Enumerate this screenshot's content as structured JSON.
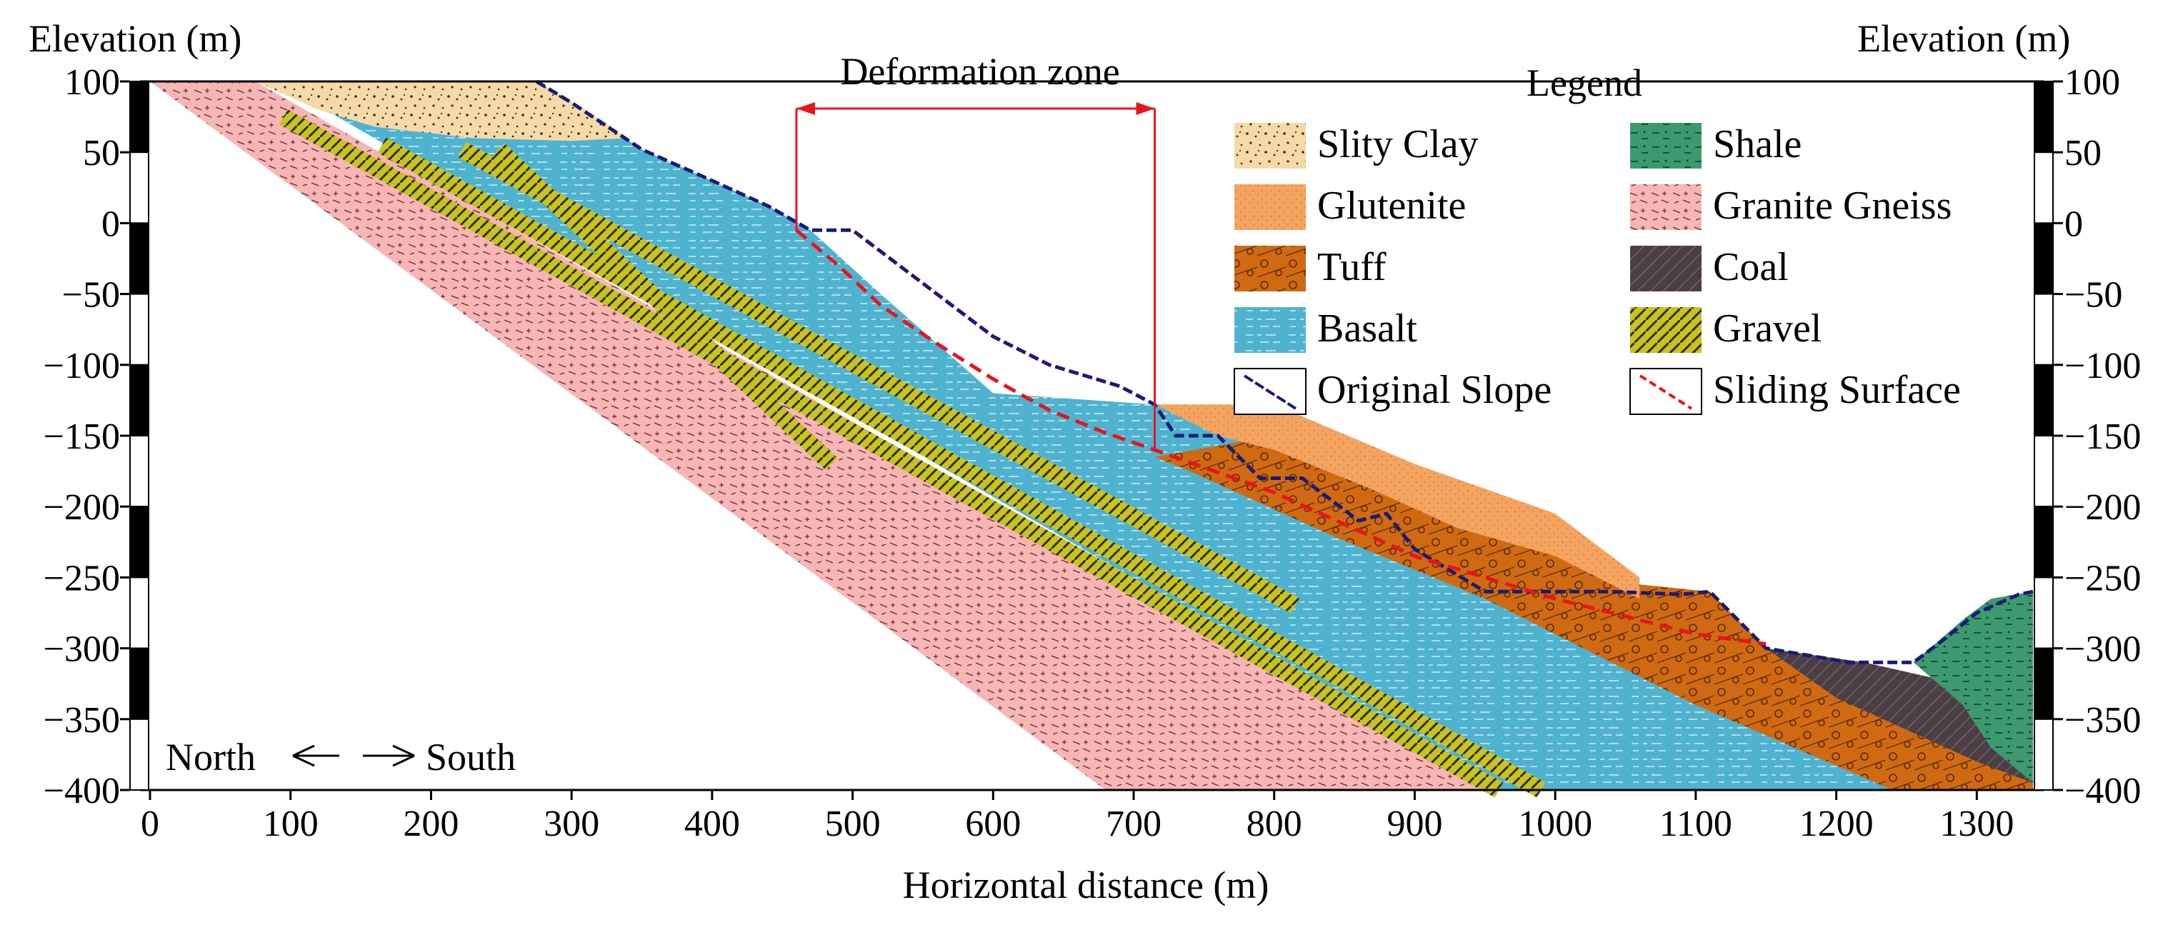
{
  "chart_data": {
    "type": "geological-cross-section",
    "title": "",
    "xlabel": "Horizontal distance (m)",
    "ylabel_left": "Elevation (m)",
    "ylabel_right": "Elevation (m)",
    "xlim": [
      0,
      1340
    ],
    "ylim": [
      -400,
      100
    ],
    "x_ticks": [
      0,
      100,
      200,
      300,
      400,
      500,
      600,
      700,
      800,
      900,
      1000,
      1100,
      1200,
      1300
    ],
    "y_ticks": [
      100,
      50,
      0,
      -50,
      -100,
      -150,
      -200,
      -250,
      -300,
      -350,
      -400
    ],
    "y_tick_labels_left": [
      "100",
      "50",
      "0",
      "−50",
      "−100",
      "−150",
      "−200",
      "−250",
      "−300",
      "−350",
      "−400"
    ],
    "y_tick_labels_right": [
      "100",
      "50",
      "0",
      "−50",
      "−100",
      "−150",
      "−200",
      "−250",
      "−300",
      "−350",
      "−400"
    ],
    "deformation_zone": {
      "label": "Deformation zone",
      "x_start": 460,
      "x_end": 715
    },
    "direction": {
      "north": "North",
      "south": "South"
    },
    "legend_title": "Legend",
    "legend": [
      {
        "label": "Slity Clay",
        "color": "#f5d9a6"
      },
      {
        "label": "Shale",
        "color": "#3d9a6e"
      },
      {
        "label": "Glutenite",
        "color": "#f5a460"
      },
      {
        "label": "Granite Gneiss",
        "color": "#f7b5b5"
      },
      {
        "label": "Tuff",
        "color": "#cf6a12"
      },
      {
        "label": "Coal",
        "color": "#4b3e44"
      },
      {
        "label": "Basalt",
        "color": "#4fb3cf"
      },
      {
        "label": "Gravel",
        "color": "#c9c41c"
      },
      {
        "label": "Original Slope",
        "color": "#1a1a7a"
      },
      {
        "label": "Sliding Surface",
        "color": "#e8141e"
      }
    ],
    "layers": [
      {
        "name": "Granite Gneiss",
        "color": "#f7b5b5",
        "polygon": [
          [
            0,
            100
          ],
          [
            75,
            100
          ],
          [
            960,
            -400
          ],
          [
            680,
            -400
          ]
        ]
      },
      {
        "name": "Tuff",
        "color": "#cf6a12",
        "polygon": [
          [
            715,
            -165
          ],
          [
            800,
            -150
          ],
          [
            900,
            -175
          ],
          [
            1000,
            -215
          ],
          [
            1060,
            -255
          ],
          [
            1110,
            -260
          ],
          [
            1150,
            -300
          ],
          [
            1220,
            -325
          ],
          [
            1340,
            -350
          ],
          [
            1340,
            -400
          ],
          [
            1240,
            -400
          ],
          [
            1100,
            -340
          ],
          [
            950,
            -265
          ],
          [
            840,
            -220
          ],
          [
            740,
            -175
          ]
        ]
      },
      {
        "name": "Glutenite",
        "color": "#f5a460",
        "polygon": [
          [
            715,
            -128
          ],
          [
            800,
            -128
          ],
          [
            900,
            -170
          ],
          [
            1000,
            -205
          ],
          [
            1060,
            -250
          ],
          [
            1060,
            -265
          ],
          [
            1000,
            -235
          ],
          [
            930,
            -215
          ],
          [
            870,
            -188
          ],
          [
            800,
            -160
          ],
          [
            760,
            -150
          ]
        ]
      },
      {
        "name": "Coal",
        "color": "#4b3e44",
        "polygon": [
          [
            1150,
            -300
          ],
          [
            1220,
            -310
          ],
          [
            1310,
            -330
          ],
          [
            1340,
            -345
          ],
          [
            1340,
            -395
          ],
          [
            1300,
            -380
          ],
          [
            1200,
            -335
          ]
        ]
      },
      {
        "name": "Shale",
        "color": "#3d9a6e",
        "polygon": [
          [
            1255,
            -310
          ],
          [
            1290,
            -280
          ],
          [
            1310,
            -265
          ],
          [
            1340,
            -260
          ],
          [
            1340,
            -395
          ],
          [
            1310,
            -370
          ],
          [
            1290,
            -340
          ]
        ]
      },
      {
        "name": "Slity Clay",
        "color": "#f5d9a6",
        "polygon": [
          [
            75,
            100
          ],
          [
            275,
            100
          ],
          [
            310,
            80
          ],
          [
            340,
            60
          ],
          [
            300,
            58
          ],
          [
            230,
            60
          ],
          [
            160,
            68
          ],
          [
            120,
            80
          ]
        ]
      }
    ],
    "gravel_bands": [
      {
        "start": [
          95,
          75
        ],
        "end": [
          960,
          -400
        ]
      },
      {
        "start": [
          165,
          55
        ],
        "end": [
          990,
          -400
        ]
      },
      {
        "start": [
          222,
          52
        ],
        "end": [
          815,
          -270
        ]
      },
      {
        "start": [
          248,
          52
        ],
        "end": [
          485,
          -170
        ]
      }
    ],
    "basalt_body": [
      [
        90,
        100
      ],
      [
        275,
        100
      ],
      [
        300,
        85
      ],
      [
        350,
        52
      ],
      [
        400,
        30
      ],
      [
        440,
        12
      ],
      [
        470,
        -5
      ],
      [
        520,
        -50
      ],
      [
        600,
        -120
      ],
      [
        715,
        -128
      ],
      [
        800,
        -128
      ],
      [
        900,
        -170
      ],
      [
        1000,
        -205
      ],
      [
        1060,
        -260
      ],
      [
        1110,
        -260
      ],
      [
        1150,
        -300
      ],
      [
        1220,
        -325
      ],
      [
        1340,
        -350
      ],
      [
        1340,
        -400
      ],
      [
        960,
        -400
      ]
    ],
    "original_slope": [
      [
        275,
        100
      ],
      [
        300,
        85
      ],
      [
        350,
        52
      ],
      [
        400,
        30
      ],
      [
        440,
        12
      ],
      [
        470,
        -5
      ],
      [
        500,
        -5
      ],
      [
        560,
        -50
      ],
      [
        600,
        -80
      ],
      [
        640,
        -100
      ],
      [
        690,
        -115
      ],
      [
        715,
        -128
      ],
      [
        730,
        -150
      ],
      [
        760,
        -150
      ],
      [
        790,
        -180
      ],
      [
        820,
        -180
      ],
      [
        860,
        -210
      ],
      [
        880,
        -205
      ],
      [
        900,
        -230
      ],
      [
        950,
        -260
      ],
      [
        1000,
        -260
      ],
      [
        1040,
        -260
      ],
      [
        1090,
        -262
      ],
      [
        1110,
        -260
      ],
      [
        1150,
        -300
      ],
      [
        1210,
        -310
      ],
      [
        1255,
        -310
      ],
      [
        1275,
        -295
      ],
      [
        1300,
        -275
      ],
      [
        1330,
        -262
      ],
      [
        1340,
        -260
      ]
    ],
    "sliding_surface": [
      [
        460,
        -5
      ],
      [
        490,
        -30
      ],
      [
        520,
        -58
      ],
      [
        560,
        -85
      ],
      [
        600,
        -110
      ],
      [
        640,
        -132
      ],
      [
        680,
        -148
      ],
      [
        715,
        -160
      ],
      [
        800,
        -190
      ],
      [
        900,
        -235
      ],
      [
        1000,
        -265
      ],
      [
        1100,
        -290
      ],
      [
        1150,
        -297
      ]
    ]
  }
}
